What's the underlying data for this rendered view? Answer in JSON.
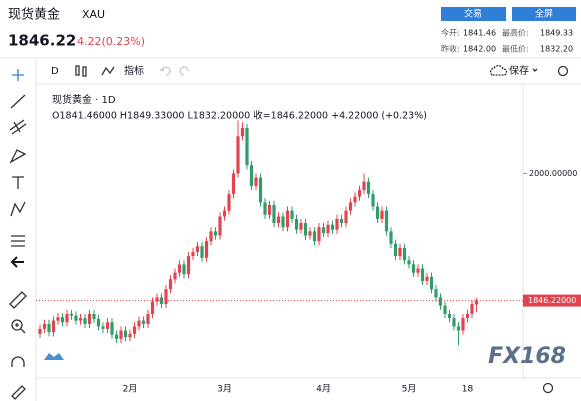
{
  "header": {
    "name": "现货黄金",
    "code": "XAU",
    "price": "1846.22",
    "change": "4.22(0.23%)",
    "buttons": [
      "交易",
      "全屏"
    ],
    "stats": [
      {
        "label": "今开:",
        "value": "1841.46"
      },
      {
        "label": "最高价:",
        "value": "1849.33"
      },
      {
        "label": "昨收:",
        "value": "1842.00"
      },
      {
        "label": "最低价:",
        "value": "1832.20"
      }
    ]
  },
  "toolbar": {
    "interval": "D",
    "indicators": "指标",
    "save": "保存"
  },
  "watermark": "FX168",
  "chart_data": {
    "type": "candlestick",
    "title": "现货黄金 · 1D",
    "ohlc_legend": "O1841.46000 H1849.33000 L1832.20000 收=1846.22000 +4.22000 (+0.23%)",
    "categories": [
      null,
      null,
      null,
      null,
      null,
      null,
      null,
      null,
      null,
      null,
      null,
      null,
      null,
      null,
      null,
      null,
      null,
      null,
      null,
      null,
      "2月",
      null,
      null,
      null,
      null,
      null,
      null,
      null,
      null,
      null,
      null,
      null,
      null,
      null,
      null,
      null,
      null,
      null,
      null,
      null,
      null,
      "3月",
      null,
      null,
      null,
      null,
      null,
      null,
      null,
      null,
      null,
      null,
      null,
      null,
      null,
      null,
      null,
      null,
      null,
      null,
      null,
      null,
      null,
      "4月",
      null,
      null,
      null,
      null,
      null,
      null,
      null,
      null,
      null,
      null,
      null,
      null,
      null,
      null,
      null,
      null,
      null,
      null,
      "5月",
      null,
      null,
      null,
      null,
      null,
      null,
      null,
      null,
      null,
      null,
      null,
      null,
      "18",
      null,
      null
    ],
    "open": [
      1806,
      1812,
      1818,
      1808,
      1822,
      1826,
      1820,
      1830,
      1828,
      1822,
      1825,
      1818,
      1830,
      1824,
      1815,
      1812,
      1820,
      1805,
      1800,
      1810,
      1802,
      1806,
      1815,
      1822,
      1818,
      1830,
      1845,
      1850,
      1842,
      1860,
      1872,
      1880,
      1890,
      1878,
      1900,
      1905,
      1912,
      1898,
      1918,
      1930,
      1925,
      1948,
      1955,
      1975,
      2000,
      2045,
      2055,
      2010,
      1985,
      1995,
      1965,
      1950,
      1962,
      1940,
      1948,
      1935,
      1955,
      1945,
      1932,
      1940,
      1925,
      1930,
      1918,
      1935,
      1928,
      1938,
      1932,
      1945,
      1940,
      1955,
      1965,
      1972,
      1980,
      1990,
      1975,
      1960,
      1945,
      1955,
      1930,
      1915,
      1900,
      1910,
      1895,
      1890,
      1880,
      1885,
      1870,
      1875,
      1860,
      1850,
      1840,
      1830,
      1825,
      1815,
      1810,
      1825,
      1830,
      1841.46
    ],
    "high": [
      1817,
      1823,
      1823,
      1827,
      1831,
      1831,
      1835,
      1835,
      1833,
      1830,
      1830,
      1835,
      1835,
      1829,
      1820,
      1825,
      1825,
      1810,
      1815,
      1815,
      1811,
      1820,
      1827,
      1827,
      1835,
      1850,
      1855,
      1855,
      1865,
      1877,
      1885,
      1895,
      1895,
      1905,
      1910,
      1917,
      1917,
      1923,
      1935,
      1935,
      1953,
      1960,
      1980,
      2005,
      2064,
      2062,
      2060,
      2015,
      2000,
      2000,
      1970,
      1967,
      1967,
      1953,
      1953,
      1960,
      1960,
      1950,
      1945,
      1945,
      1935,
      1935,
      1940,
      1940,
      1943,
      1943,
      1950,
      1950,
      1960,
      1970,
      1977,
      1985,
      2000,
      1995,
      1980,
      1965,
      1960,
      1960,
      1935,
      1920,
      1915,
      1915,
      1900,
      1895,
      1890,
      1890,
      1880,
      1880,
      1865,
      1855,
      1845,
      1835,
      1830,
      1820,
      1830,
      1835,
      1847,
      1849.33
    ],
    "low": [
      1801,
      1807,
      1803,
      1803,
      1817,
      1815,
      1815,
      1823,
      1817,
      1817,
      1813,
      1813,
      1819,
      1810,
      1807,
      1807,
      1800,
      1795,
      1795,
      1797,
      1797,
      1801,
      1810,
      1813,
      1813,
      1825,
      1840,
      1837,
      1837,
      1855,
      1867,
      1875,
      1873,
      1873,
      1895,
      1900,
      1893,
      1893,
      1913,
      1920,
      1920,
      1943,
      1950,
      1970,
      1995,
      2040,
      2005,
      1980,
      1980,
      1960,
      1945,
      1945,
      1935,
      1935,
      1930,
      1930,
      1940,
      1927,
      1927,
      1920,
      1920,
      1913,
      1913,
      1923,
      1923,
      1927,
      1927,
      1935,
      1935,
      1950,
      1960,
      1967,
      1975,
      1970,
      1955,
      1940,
      1940,
      1925,
      1910,
      1895,
      1895,
      1890,
      1885,
      1875,
      1875,
      1865,
      1865,
      1855,
      1845,
      1835,
      1825,
      1820,
      1810,
      1792,
      1805,
      1820,
      1825,
      1832.2
    ],
    "close": [
      1812,
      1818,
      1808,
      1822,
      1826,
      1820,
      1830,
      1828,
      1822,
      1825,
      1818,
      1830,
      1824,
      1815,
      1812,
      1820,
      1805,
      1800,
      1810,
      1802,
      1806,
      1815,
      1822,
      1818,
      1830,
      1845,
      1850,
      1842,
      1860,
      1872,
      1880,
      1890,
      1878,
      1900,
      1905,
      1912,
      1898,
      1918,
      1930,
      1925,
      1948,
      1955,
      1975,
      2000,
      2045,
      2055,
      2010,
      1985,
      1995,
      1965,
      1950,
      1962,
      1940,
      1948,
      1935,
      1955,
      1945,
      1932,
      1940,
      1925,
      1930,
      1918,
      1935,
      1928,
      1938,
      1932,
      1945,
      1940,
      1955,
      1965,
      1972,
      1980,
      1990,
      1975,
      1960,
      1945,
      1955,
      1930,
      1915,
      1900,
      1910,
      1895,
      1890,
      1880,
      1885,
      1870,
      1875,
      1860,
      1850,
      1840,
      1830,
      1825,
      1815,
      1810,
      1825,
      1830,
      1842,
      1846.22
    ],
    "up_color": "#e0454f",
    "down_color": "#2f9c6a",
    "ylim": [
      1755,
      2107
    ],
    "yticks": [
      {
        "value": 2000,
        "label": "2000.00000"
      }
    ],
    "last_price": {
      "value": 1846.22,
      "label": "1846.22000"
    },
    "grid": false
  }
}
